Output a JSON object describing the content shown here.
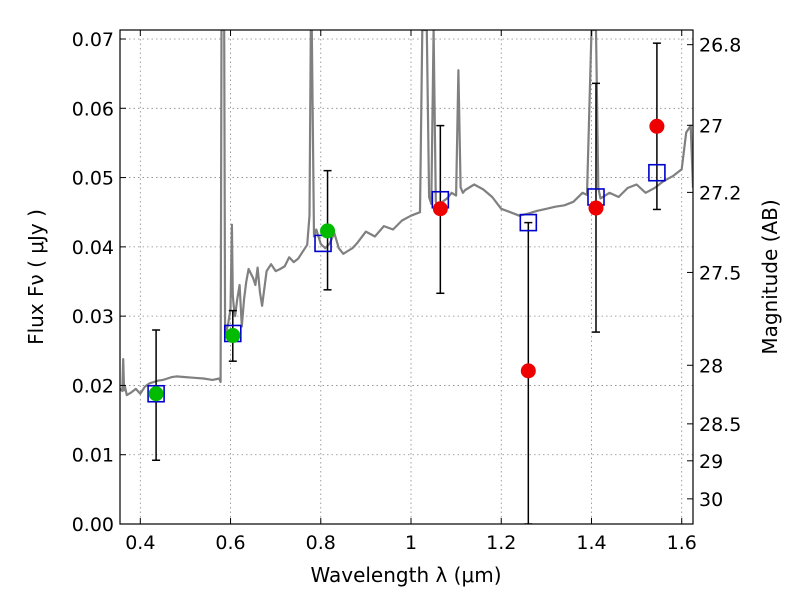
{
  "chart_data": {
    "type": "scatter",
    "xlabel": "Wavelength  λ (μm)",
    "ylabel": "Flux  Fν  ( μJy )",
    "y2label": "Magnitude (AB)",
    "xlim": [
      0.355,
      1.625
    ],
    "ylim": [
      0.0,
      0.0713
    ],
    "grid": true,
    "x_ticks": [
      0.4,
      0.6,
      0.8,
      1.0,
      1.2,
      1.4,
      1.6
    ],
    "x_tick_labels": [
      "0.4",
      "0.6",
      "0.8",
      "1",
      "1.2",
      "1.4",
      "1.6"
    ],
    "y_ticks": [
      0.0,
      0.01,
      0.02,
      0.03,
      0.04,
      0.05,
      0.06,
      0.07
    ],
    "y_tick_labels": [
      "0.00",
      "0.01",
      "0.02",
      "0.03",
      "0.04",
      "0.05",
      "0.06",
      "0.07"
    ],
    "y2_ticks": [
      26.8,
      27,
      27.2,
      27.5,
      28,
      28.5,
      29,
      30
    ],
    "y2_tick_labels": [
      "26.8",
      "27",
      "27.2",
      "27.5",
      "28",
      "28.5",
      "29",
      "30"
    ],
    "colors": {
      "template": "#808080",
      "model": "#0000cc",
      "observed_detected": "#00bb00",
      "observed_limit": "#ee0000",
      "error": "#000000",
      "grid": "#888888"
    },
    "series": [
      {
        "marker": "square",
        "style": "open",
        "x": [
          0.435,
          0.605,
          0.805,
          1.065,
          1.26,
          1.41,
          1.545
        ],
        "y": [
          0.0188,
          0.0275,
          0.0405,
          0.0468,
          0.0435,
          0.0472,
          0.0507
        ]
      },
      {
        "marker": "circle",
        "x": [
          0.435,
          0.605,
          0.815
        ],
        "y": [
          0.0188,
          0.0272,
          0.0423
        ],
        "yerr_low": [
          0.0096,
          0.0037,
          0.0085
        ],
        "yerr_high": [
          0.0092,
          0.0036,
          0.0087
        ]
      },
      {
        "marker": "circle",
        "x": [
          1.065,
          1.26,
          1.41,
          1.545
        ],
        "y": [
          0.0455,
          0.0221,
          0.0456,
          0.0574
        ],
        "yerr_low": [
          0.0122,
          0.0221,
          0.0179,
          0.012
        ],
        "yerr_high": [
          0.012,
          0.0214,
          0.018,
          0.012
        ]
      }
    ],
    "template_spectrum": {
      "x": [
        0.355,
        0.36,
        0.362,
        0.364,
        0.366,
        0.37,
        0.38,
        0.39,
        0.4,
        0.41,
        0.42,
        0.43,
        0.44,
        0.45,
        0.46,
        0.47,
        0.48,
        0.5,
        0.52,
        0.54,
        0.56,
        0.575,
        0.578,
        0.58,
        0.582,
        0.584,
        0.586,
        0.588,
        0.59,
        0.595,
        0.6,
        0.603,
        0.605,
        0.607,
        0.61,
        0.615,
        0.62,
        0.625,
        0.63,
        0.635,
        0.64,
        0.65,
        0.655,
        0.66,
        0.665,
        0.67,
        0.68,
        0.69,
        0.7,
        0.71,
        0.72,
        0.73,
        0.74,
        0.75,
        0.76,
        0.77,
        0.775,
        0.778,
        0.78,
        0.785,
        0.79,
        0.8,
        0.81,
        0.82,
        0.83,
        0.84,
        0.85,
        0.86,
        0.87,
        0.88,
        0.9,
        0.92,
        0.94,
        0.96,
        0.98,
        1.0,
        1.02,
        1.025,
        1.03,
        1.035,
        1.04,
        1.045,
        1.05,
        1.055,
        1.06,
        1.07,
        1.08,
        1.09,
        1.1,
        1.105,
        1.11,
        1.115,
        1.12,
        1.14,
        1.16,
        1.18,
        1.2,
        1.22,
        1.24,
        1.26,
        1.28,
        1.3,
        1.32,
        1.34,
        1.36,
        1.38,
        1.39,
        1.4,
        1.405,
        1.41,
        1.415,
        1.42,
        1.44,
        1.46,
        1.48,
        1.5,
        1.52,
        1.54,
        1.56,
        1.58,
        1.6,
        1.61,
        1.62,
        1.625
      ],
      "y": [
        0.0195,
        0.0192,
        0.0238,
        0.0193,
        0.0198,
        0.0186,
        0.019,
        0.0195,
        0.0188,
        0.0198,
        0.0203,
        0.0205,
        0.0207,
        0.0208,
        0.021,
        0.0212,
        0.0213,
        0.0212,
        0.0211,
        0.021,
        0.0208,
        0.021,
        0.0205,
        0.0713,
        0.0713,
        0.0713,
        0.0713,
        0.027,
        0.0276,
        0.029,
        0.031,
        0.0432,
        0.033,
        0.0315,
        0.03,
        0.0325,
        0.0345,
        0.0285,
        0.0325,
        0.035,
        0.0368,
        0.0355,
        0.0345,
        0.037,
        0.0335,
        0.0315,
        0.0365,
        0.0375,
        0.0365,
        0.0368,
        0.0372,
        0.0385,
        0.0378,
        0.0383,
        0.0393,
        0.0403,
        0.0445,
        0.0713,
        0.0713,
        0.0415,
        0.0425,
        0.0404,
        0.0398,
        0.0405,
        0.042,
        0.0398,
        0.039,
        0.0394,
        0.0398,
        0.0405,
        0.0422,
        0.0415,
        0.043,
        0.0425,
        0.0438,
        0.0445,
        0.045,
        0.0713,
        0.0713,
        0.0713,
        0.0472,
        0.0462,
        0.0713,
        0.0465,
        0.046,
        0.0465,
        0.047,
        0.0478,
        0.0474,
        0.0655,
        0.0486,
        0.0478,
        0.0482,
        0.049,
        0.0483,
        0.0472,
        0.0455,
        0.045,
        0.0445,
        0.0448,
        0.0452,
        0.0455,
        0.0458,
        0.046,
        0.0465,
        0.0478,
        0.0475,
        0.0713,
        0.0713,
        0.0713,
        0.0485,
        0.047,
        0.0478,
        0.0472,
        0.0485,
        0.049,
        0.0478,
        0.0485,
        0.0495,
        0.0502,
        0.0512,
        0.0565,
        0.0575,
        0.0485
      ]
    }
  }
}
